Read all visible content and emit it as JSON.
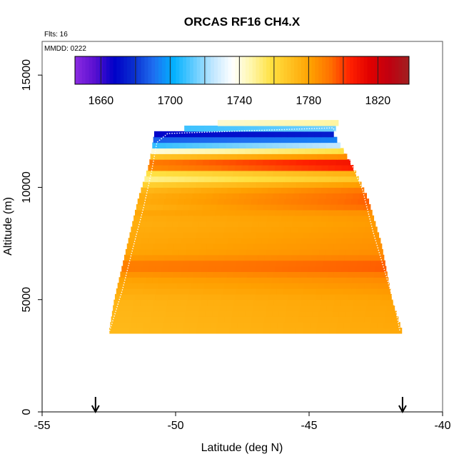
{
  "chart_data": {
    "type": "heatmap",
    "title": "ORCAS RF16 CH4.X",
    "annotations": [
      "Flts: 16",
      "MMDD: 0222"
    ],
    "xlabel": "Latitude (deg N)",
    "ylabel": "Altitude (m)",
    "xlim": [
      -55,
      -40
    ],
    "ylim": [
      0,
      16500
    ],
    "x_ticks": [
      -55,
      -50,
      -45,
      -40
    ],
    "y_ticks": [
      0,
      5000,
      10000,
      15000
    ],
    "colorbar": {
      "min": 1645,
      "max": 1838,
      "ticks": [
        1660,
        1700,
        1740,
        1780,
        1820
      ],
      "colors": [
        "#8b2be2",
        "#5a10d0",
        "#0000c8",
        "#0a2fd0",
        "#1e6ef0",
        "#00b0ff",
        "#5ecbff",
        "#bfe6ff",
        "#ffffff",
        "#fff6a8",
        "#ffe040",
        "#ffc020",
        "#ffa000",
        "#ff7000",
        "#ff2000",
        "#e00000",
        "#c00010",
        "#a02020"
      ]
    },
    "value_profile": [
      {
        "alt": 3500,
        "value": 1775
      },
      {
        "alt": 5000,
        "value": 1777
      },
      {
        "alt": 6000,
        "value": 1784
      },
      {
        "alt": 6500,
        "value": 1795
      },
      {
        "alt": 7000,
        "value": 1783
      },
      {
        "alt": 8500,
        "value": 1779
      },
      {
        "alt": 9500,
        "value": 1787
      },
      {
        "alt": 10000,
        "value": 1780
      },
      {
        "alt": 10500,
        "value": 1752
      },
      {
        "alt": 11000,
        "value": 1810
      },
      {
        "alt": 11500,
        "value": 1766
      },
      {
        "alt": 12000,
        "value": 1700
      },
      {
        "alt": 12400,
        "value": 1670
      },
      {
        "alt": 12800,
        "value": 1745
      }
    ],
    "coverage": [
      {
        "alt": 3500,
        "lat_min": -52.5,
        "lat_max": -41.5
      },
      {
        "alt": 5000,
        "lat_min": -52.3,
        "lat_max": -41.9
      },
      {
        "alt": 7500,
        "lat_min": -51.8,
        "lat_max": -42.3
      },
      {
        "alt": 9500,
        "lat_min": -51.4,
        "lat_max": -42.8
      },
      {
        "alt": 11000,
        "lat_min": -51.0,
        "lat_max": -43.4
      },
      {
        "alt": 12400,
        "lat_min": -50.8,
        "lat_max": -44.1
      },
      {
        "alt": 12900,
        "lat_min": -48.3,
        "lat_max": -43.9
      }
    ],
    "flight_track": [
      {
        "lat": -52.5,
        "alt": 3500
      },
      {
        "lat": -52.0,
        "alt": 5400
      },
      {
        "lat": -51.6,
        "alt": 7300
      },
      {
        "lat": -51.2,
        "alt": 9100
      },
      {
        "lat": -50.9,
        "alt": 10700
      },
      {
        "lat": -50.7,
        "alt": 12000
      },
      {
        "lat": -50.3,
        "alt": 12400
      },
      {
        "lat": -44.1,
        "alt": 12650
      },
      {
        "lat": -43.5,
        "alt": 11300
      },
      {
        "lat": -43.0,
        "alt": 9900
      },
      {
        "lat": -42.6,
        "alt": 8000
      },
      {
        "lat": -42.1,
        "alt": 6000
      },
      {
        "lat": -41.8,
        "alt": 4800
      },
      {
        "lat": -41.6,
        "alt": 3600
      }
    ],
    "markers": [
      {
        "lat": -53.0,
        "type": "arrow"
      },
      {
        "lat": -41.5,
        "type": "arrow"
      }
    ]
  }
}
